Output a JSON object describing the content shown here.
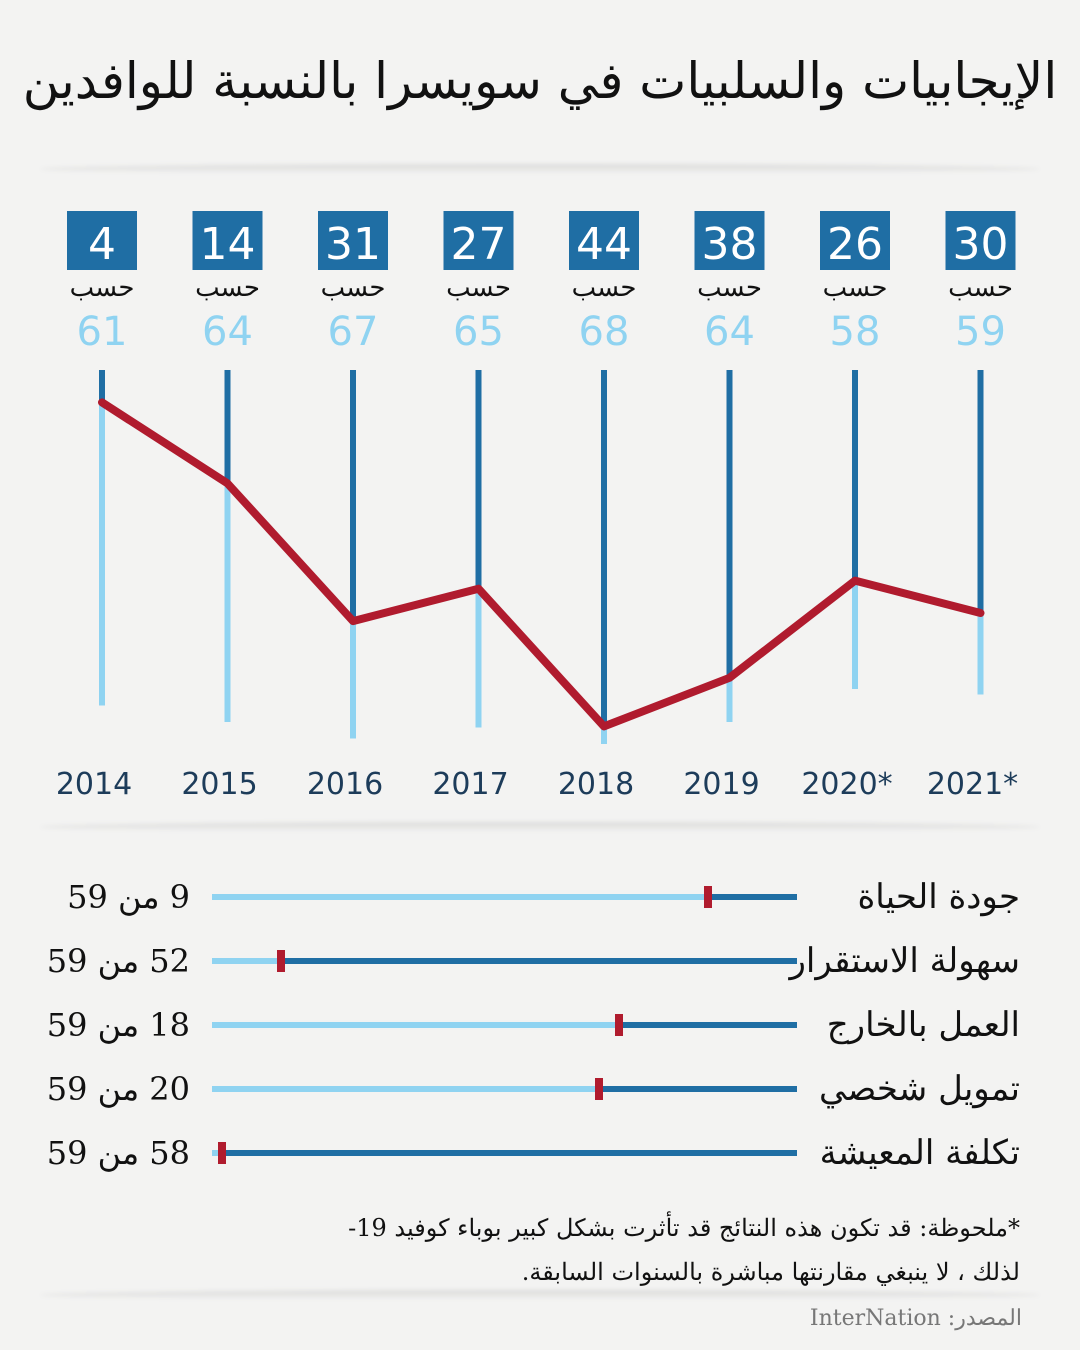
{
  "title": "الإيجابيات والسلبيات في سويسرا  بالنسبة للوافدين",
  "colors": {
    "dark_blue": "#1f6ea4",
    "light_blue": "#8fd3f1",
    "red": "#b01b2e",
    "background": "#f3f3f2"
  },
  "chart_data": [
    {
      "type": "line",
      "title": "",
      "by_label": "حسب",
      "x": [
        "2014",
        "2015",
        "2016",
        "2017",
        "2018",
        "2019",
        "2020*",
        "2021*"
      ],
      "series": [
        {
          "values": [
            4,
            14,
            31,
            27,
            44,
            38,
            26,
            30
          ]
        }
      ],
      "totals": [
        61,
        64,
        67,
        65,
        68,
        64,
        58,
        59
      ],
      "ylim": [
        0,
        68
      ],
      "grid": false
    },
    {
      "type": "bar",
      "categories": [
        "جودة الحياة",
        "سهولة الاستقرار",
        "العمل بالخارج",
        "تمويل شخصي",
        "تكلفة المعيشة"
      ],
      "values": [
        9,
        52,
        18,
        20,
        58
      ],
      "totals": [
        59,
        59,
        59,
        59,
        59
      ],
      "value_labels": [
        "9 من 59",
        "52 من 59",
        "18 من 59",
        "20 من 59",
        "58 من 59"
      ]
    }
  ],
  "note": {
    "line1": "*ملحوظة: قد تكون هذه النتائج قد تأثرت بشكل كبير بوباء كوفيد 19-",
    "line2": "لذلك ، لا ينبغي مقارنتها مباشرة بالسنوات السابقة."
  },
  "source": "المصدر: InterNation"
}
